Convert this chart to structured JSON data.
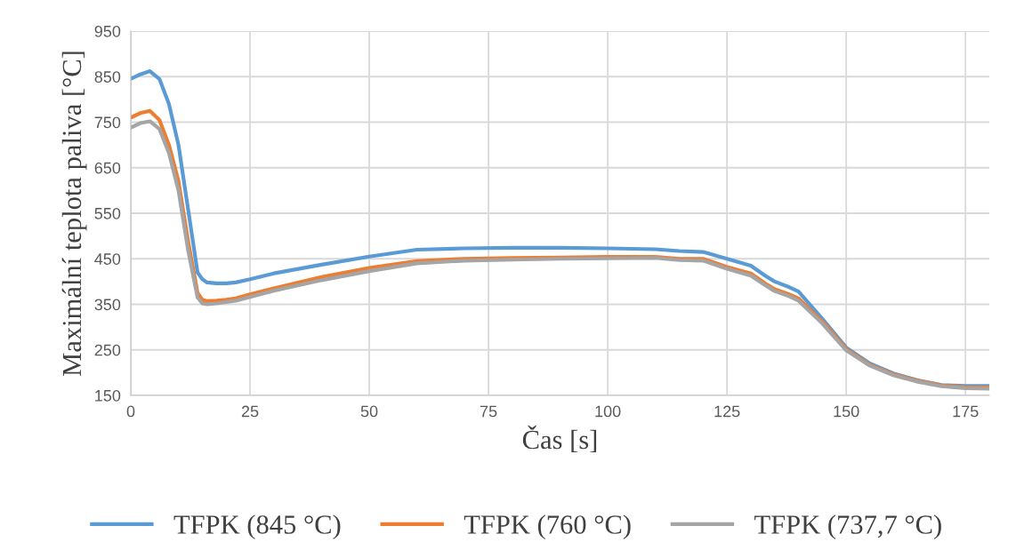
{
  "chart_data": {
    "type": "line",
    "xlabel": "Čas [s]",
    "ylabel": "Maximální teplota paliva [°C]",
    "x": [
      0,
      2,
      4,
      6,
      8,
      10,
      12,
      14,
      15,
      16,
      18,
      20,
      22,
      25,
      30,
      40,
      50,
      60,
      70,
      80,
      90,
      100,
      110,
      115,
      120,
      125,
      130,
      133,
      135,
      138,
      140,
      145,
      150,
      155,
      160,
      165,
      170,
      175,
      180
    ],
    "series": [
      {
        "name": "TFPK (845 °C)",
        "color": "#5b9bd5",
        "values": [
          845,
          855,
          862,
          845,
          790,
          700,
          560,
          420,
          405,
          398,
          396,
          396,
          398,
          405,
          418,
          437,
          455,
          470,
          473,
          474,
          474,
          473,
          471,
          467,
          465,
          450,
          435,
          413,
          400,
          388,
          378,
          318,
          255,
          220,
          198,
          183,
          173,
          171,
          171
        ]
      },
      {
        "name": "TFPK (760 °C)",
        "color": "#ed7d31",
        "values": [
          760,
          770,
          775,
          755,
          700,
          620,
          490,
          375,
          360,
          357,
          358,
          360,
          363,
          372,
          385,
          410,
          430,
          445,
          450,
          452,
          453,
          454,
          454,
          450,
          450,
          432,
          418,
          396,
          383,
          372,
          363,
          312,
          252,
          217,
          196,
          182,
          172,
          168,
          168
        ]
      },
      {
        "name": "TFPK (737,7 °C)",
        "color": "#a5a5a5",
        "values": [
          738,
          748,
          752,
          735,
          682,
          600,
          470,
          365,
          352,
          350,
          352,
          355,
          358,
          366,
          380,
          403,
          423,
          440,
          446,
          448,
          450,
          451,
          452,
          447,
          446,
          428,
          413,
          392,
          379,
          368,
          358,
          308,
          249,
          215,
          194,
          180,
          170,
          166,
          165
        ]
      }
    ],
    "xlim": [
      0,
      180
    ],
    "xticks": [
      0,
      25,
      50,
      75,
      100,
      125,
      150,
      175
    ],
    "ylim": [
      150,
      950
    ],
    "yticks": [
      150,
      250,
      350,
      450,
      550,
      650,
      750,
      850,
      950
    ],
    "grid": true,
    "legend": "bottom",
    "marker": "none",
    "line_style": "solid"
  }
}
